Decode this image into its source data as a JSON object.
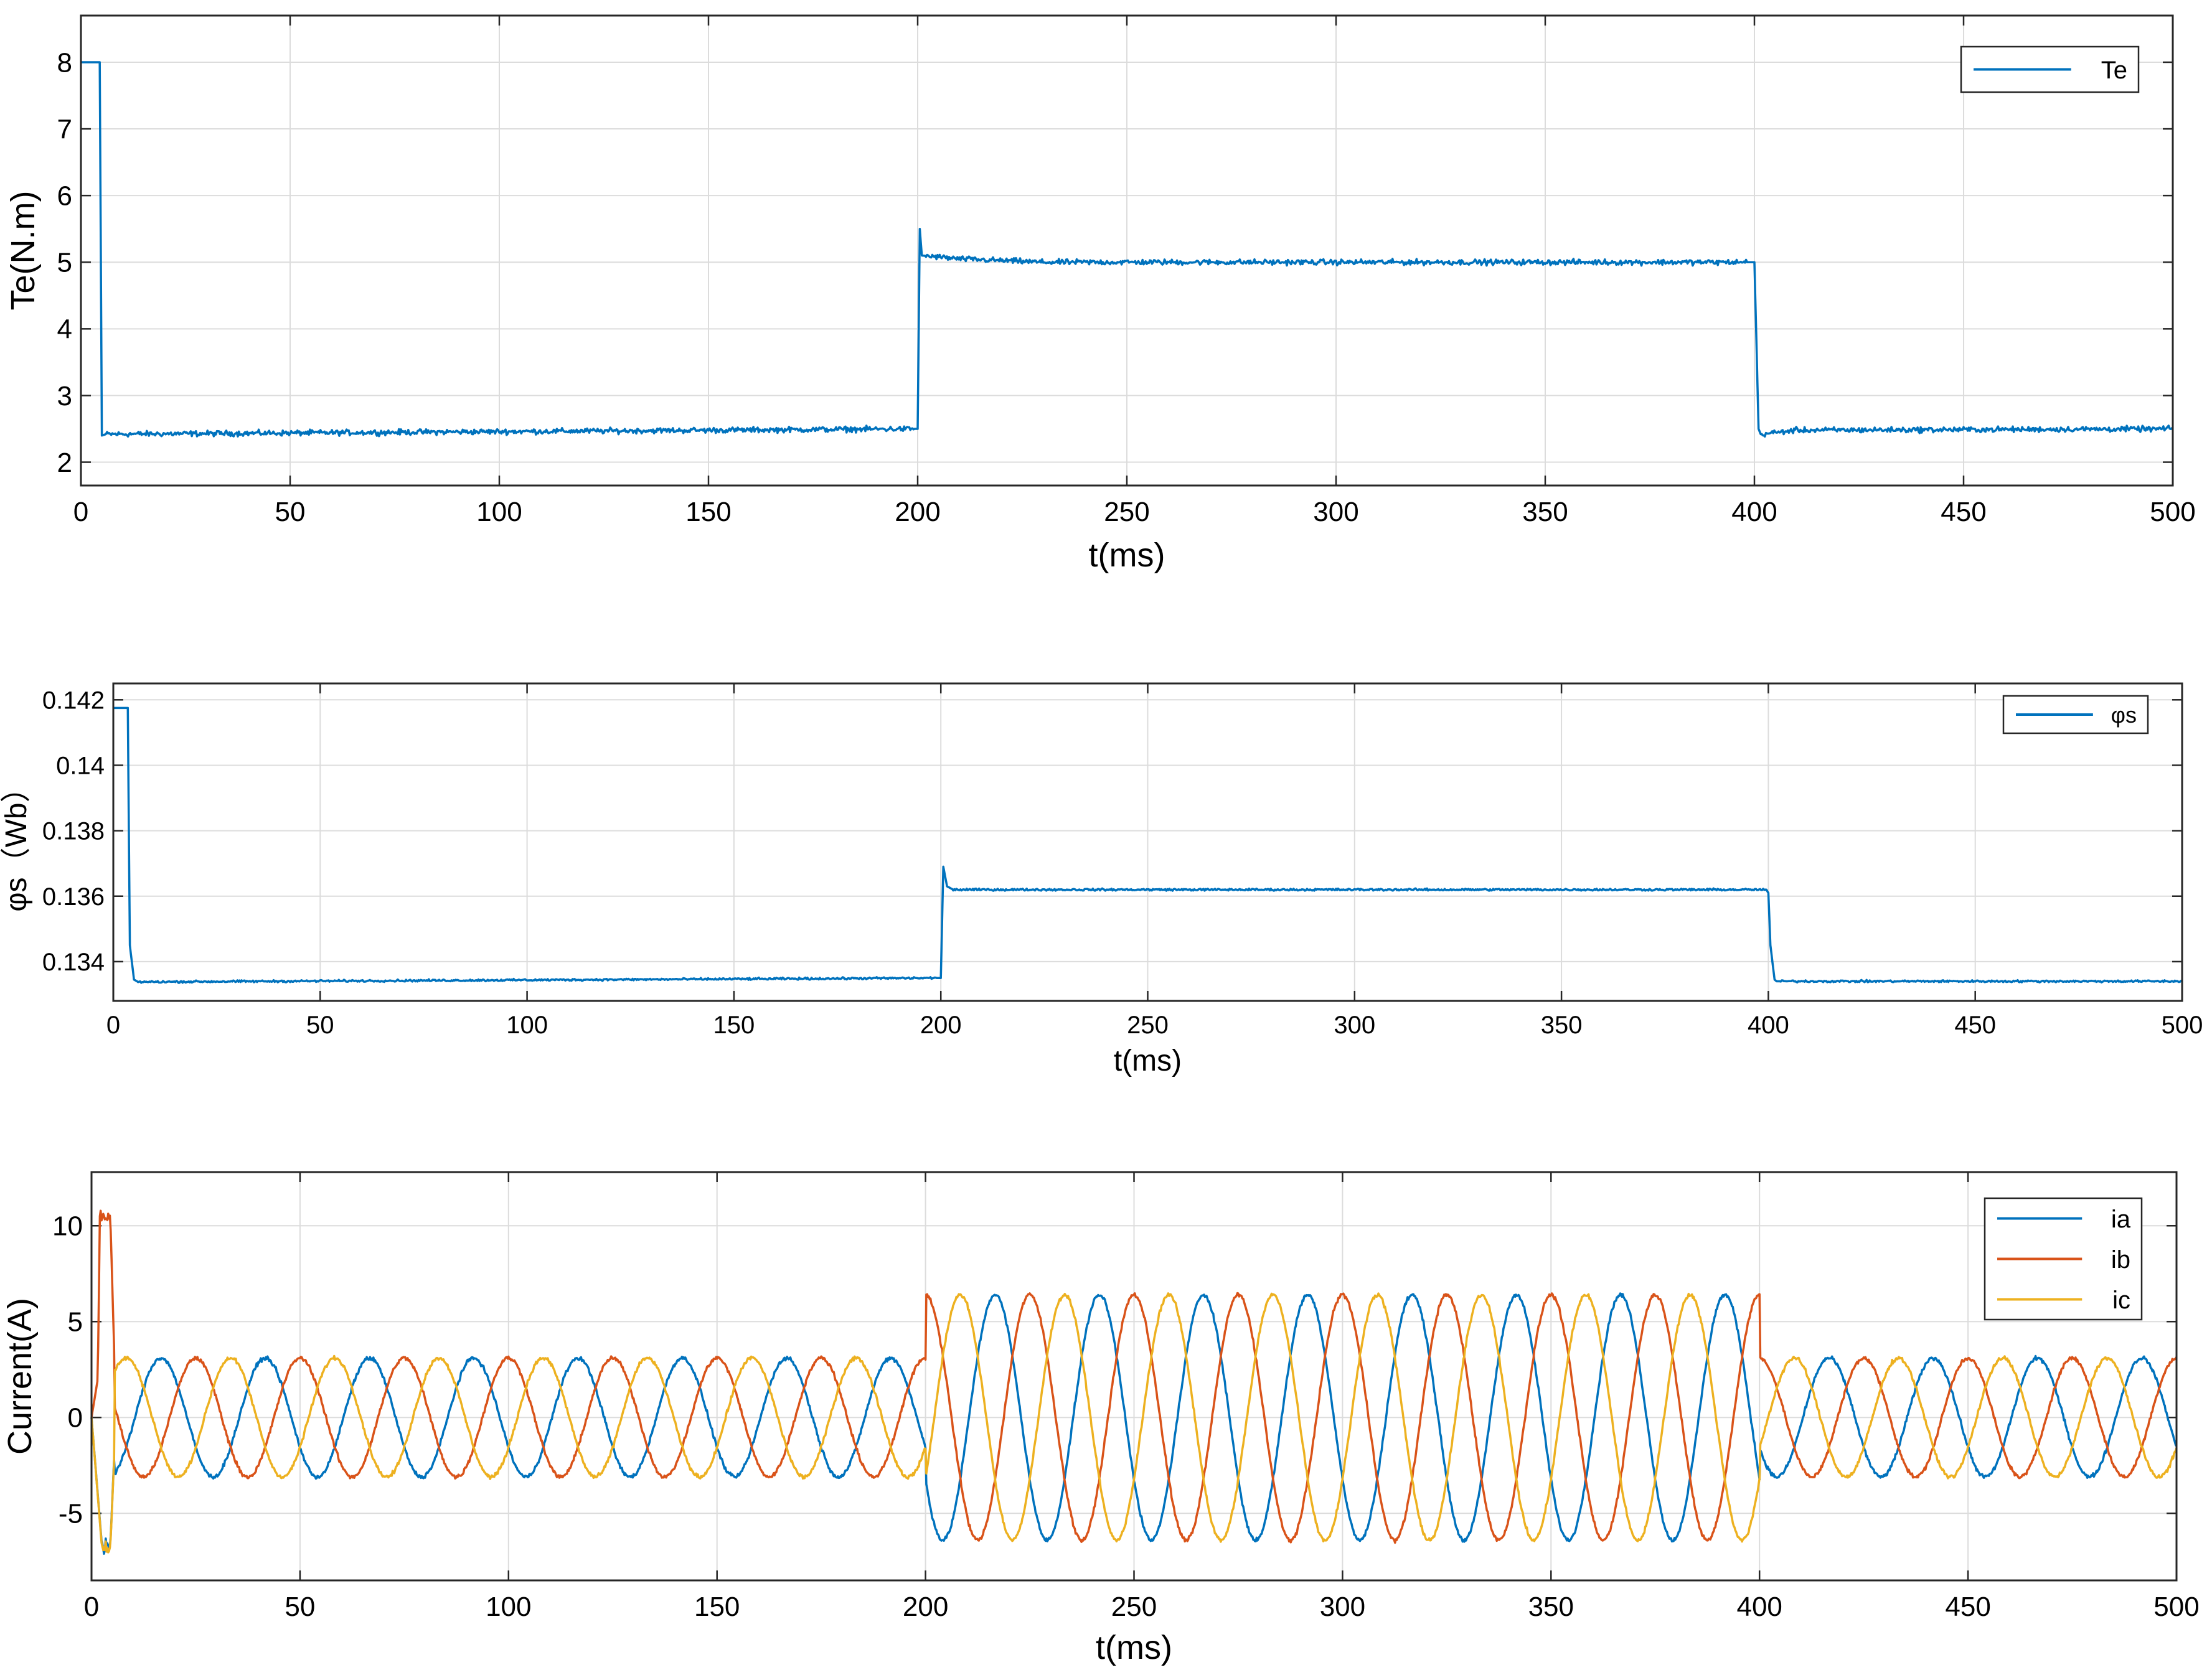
{
  "chart_data": [
    {
      "type": "line",
      "xlabel": "t(ms)",
      "ylabel": "Te(N.m)",
      "xlim": [
        0,
        500
      ],
      "ylim": [
        1.65,
        8.7
      ],
      "xticks": [
        0,
        50,
        100,
        150,
        200,
        250,
        300,
        350,
        400,
        450,
        500
      ],
      "yticks": [
        2,
        3,
        4,
        5,
        6,
        7,
        8
      ],
      "xtick_labels": [
        "0",
        "50",
        "100",
        "150",
        "200",
        "250",
        "300",
        "350",
        "400",
        "450",
        "500"
      ],
      "ytick_labels": [
        "2",
        "3",
        "4",
        "5",
        "6",
        "7",
        "8"
      ],
      "grid": true,
      "legend_position": "top-right",
      "series": [
        {
          "name": "Te",
          "color": "#0072BD",
          "noise": 0.04,
          "points": [
            [
              0,
              8
            ],
            [
              4.5,
              8
            ],
            [
              5,
              2.4
            ],
            [
              6,
              2.42
            ],
            [
              199,
              2.5
            ],
            [
              200,
              2.5
            ],
            [
              200.5,
              5.5
            ],
            [
              201,
              5.1
            ],
            [
              210,
              5.05
            ],
            [
              230,
              5.0
            ],
            [
              398.5,
              5.0
            ],
            [
              400,
              5.0
            ],
            [
              401,
              2.5
            ],
            [
              401.5,
              2.42
            ],
            [
              410,
              2.48
            ],
            [
              500,
              2.5
            ]
          ],
          "noise_ranges": [
            [
              6,
              199
            ],
            [
              202,
              398
            ],
            [
              402,
              500
            ]
          ]
        }
      ]
    },
    {
      "type": "line",
      "xlabel": "t(ms)",
      "ylabel": "φs（Wb）",
      "xlim": [
        0,
        500
      ],
      "ylim": [
        0.1328,
        0.1425
      ],
      "xticks": [
        0,
        50,
        100,
        150,
        200,
        250,
        300,
        350,
        400,
        450,
        500
      ],
      "yticks": [
        0.134,
        0.136,
        0.138,
        0.14,
        0.142
      ],
      "xtick_labels": [
        "0",
        "50",
        "100",
        "150",
        "200",
        "250",
        "300",
        "350",
        "400",
        "450",
        "500"
      ],
      "ytick_labels": [
        "0.134",
        "0.136",
        "0.138",
        "0.14",
        "0.142"
      ],
      "grid": true,
      "legend_position": "top-right",
      "series": [
        {
          "name": "φs",
          "color": "#0072BD",
          "noise": 3e-05,
          "points": [
            [
              0,
              0.14175
            ],
            [
              3.5,
              0.14175
            ],
            [
              4,
              0.1345
            ],
            [
              5,
              0.13345
            ],
            [
              6,
              0.13338
            ],
            [
              199.5,
              0.1335
            ],
            [
              200,
              0.1335
            ],
            [
              200.6,
              0.1369
            ],
            [
              201.5,
              0.1363
            ],
            [
              203,
              0.1362
            ],
            [
              399.5,
              0.1362
            ],
            [
              400,
              0.1361
            ],
            [
              400.5,
              0.1345
            ],
            [
              401.5,
              0.13345
            ],
            [
              402,
              0.1334
            ],
            [
              500,
              0.1334
            ]
          ],
          "noise_ranges": [
            [
              6,
              199
            ],
            [
              203,
              399
            ],
            [
              403,
              500
            ]
          ]
        }
      ]
    },
    {
      "type": "line",
      "xlabel": "t(ms)",
      "ylabel": "Current(A)",
      "xlim": [
        0,
        500
      ],
      "ylim": [
        -8.5,
        12.8
      ],
      "xticks": [
        0,
        50,
        100,
        150,
        200,
        250,
        300,
        350,
        400,
        450,
        500
      ],
      "yticks": [
        -5,
        0,
        5,
        10
      ],
      "xtick_labels": [
        "0",
        "50",
        "100",
        "150",
        "200",
        "250",
        "300",
        "350",
        "400",
        "450",
        "500"
      ],
      "ytick_labels": [
        "-5",
        "0",
        "5",
        "10"
      ],
      "grid": true,
      "legend_position": "top-right",
      "frequency_hz": 40,
      "amplitude_light_load": 3.1,
      "amplitude_heavy_load": 6.4,
      "load_step_times": [
        200,
        400
      ],
      "series": [
        {
          "name": "ia",
          "color": "#0072BD",
          "phase_deg": 210
        },
        {
          "name": "ib",
          "color": "#D95319",
          "phase_deg": 90
        },
        {
          "name": "ic",
          "color": "#EDB120",
          "phase_deg": 330
        }
      ],
      "startup_peak": {
        "series": "ib",
        "value": 10.5
      },
      "startup_dips": {
        "ia": -6.7,
        "ic": -6.8
      }
    }
  ]
}
